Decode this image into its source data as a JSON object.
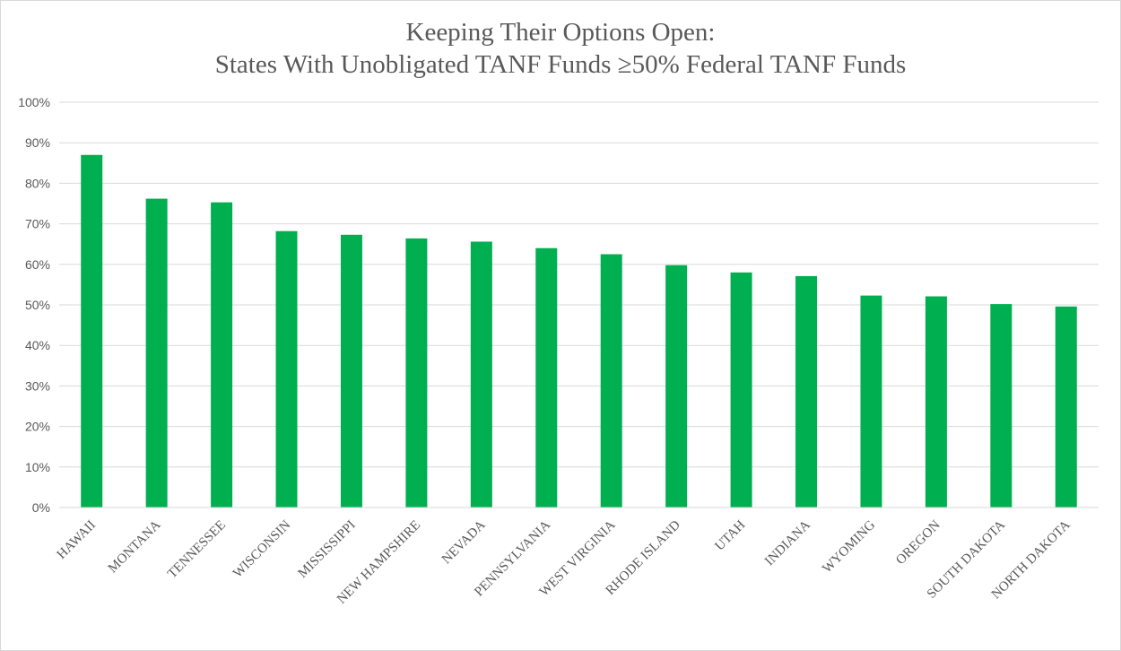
{
  "chart_data": {
    "type": "bar",
    "title": "Keeping Their Options Open:",
    "subtitle": "States With Unobligated TANF Funds ≥50% Federal TANF Funds",
    "categories": [
      "HAWAII",
      "MONTANA",
      "TENNESSEE",
      "WISCONSIN",
      "MISSISSIPPI",
      "NEW HAMPSHIRE",
      "NEVADA",
      "PENNSYLVANIA",
      "WEST VIRGINIA",
      "RHODE ISLAND",
      "UTAH",
      "INDIANA",
      "WYOMING",
      "OREGON",
      "SOUTH DAKOTA",
      "NORTH DAKOTA"
    ],
    "values": [
      87.0,
      76.2,
      75.3,
      68.2,
      67.3,
      66.4,
      65.6,
      64.0,
      62.5,
      59.8,
      58.0,
      57.1,
      52.3,
      52.1,
      50.2,
      49.6
    ],
    "ylim": [
      0,
      100
    ],
    "yticks": [
      "0%",
      "10%",
      "20%",
      "30%",
      "40%",
      "50%",
      "60%",
      "70%",
      "80%",
      "90%",
      "100%"
    ],
    "grid": true,
    "legend": "none",
    "bar_color": "#00b050",
    "grid_color": "#d9d9d9",
    "text_color": "#595959"
  }
}
